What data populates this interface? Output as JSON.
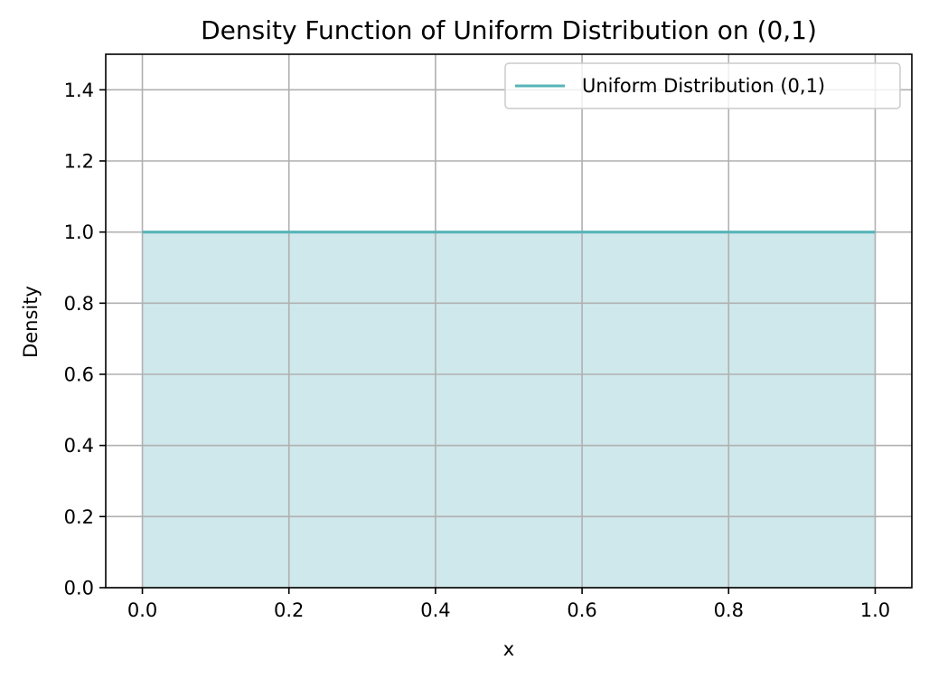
{
  "chart_data": {
    "type": "area",
    "title": "Density Function of Uniform Distribution on (0,1)",
    "xlabel": "x",
    "ylabel": "Density",
    "xlim": [
      -0.05,
      1.05
    ],
    "ylim": [
      0,
      1.5
    ],
    "x_ticks": [
      0.0,
      0.2,
      0.4,
      0.6,
      0.8,
      1.0
    ],
    "x_tick_labels": [
      "0.0",
      "0.2",
      "0.4",
      "0.6",
      "0.8",
      "1.0"
    ],
    "y_ticks": [
      0.0,
      0.2,
      0.4,
      0.6,
      0.8,
      1.0,
      1.2,
      1.4
    ],
    "y_tick_labels": [
      "0.0",
      "0.2",
      "0.4",
      "0.6",
      "0.8",
      "1.0",
      "1.2",
      "1.4"
    ],
    "grid": true,
    "legend_position": "top-right",
    "series": [
      {
        "name": "Uniform Distribution (0,1)",
        "x": [
          0.0,
          1.0
        ],
        "y": [
          1.0,
          1.0
        ],
        "line_color": "#56b4b8",
        "fill_color": "#cfe8ec"
      }
    ]
  }
}
